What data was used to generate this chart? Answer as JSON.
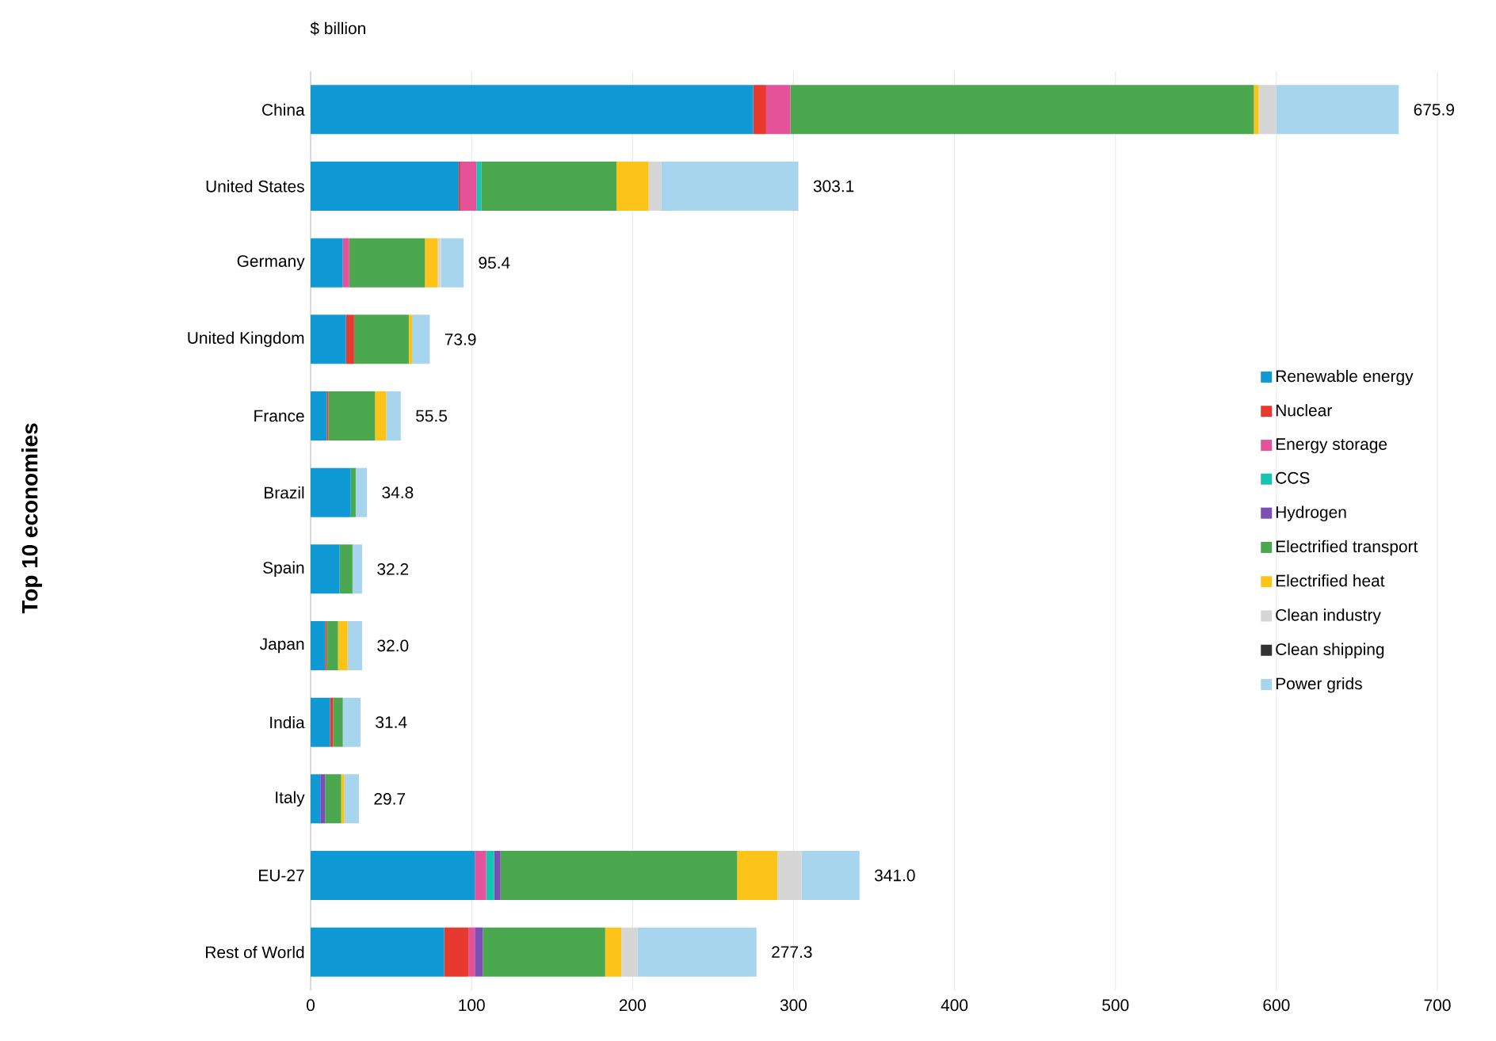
{
  "chart_data": {
    "type": "bar",
    "orientation": "horizontal",
    "stacked": true,
    "title": "$ billion",
    "annotations": [
      "Top 10 economies"
    ],
    "categories": [
      "China",
      "United States",
      "Germany",
      "United Kingdom",
      "France",
      "Brazil",
      "Spain",
      "Japan",
      "India",
      "Italy",
      "EU-27",
      "Rest of World"
    ],
    "series": [
      {
        "name": "Renewable energy",
        "color": "#0f9ad6",
        "values": [
          275,
          92,
          20,
          22,
          10,
          25,
          18,
          9,
          12,
          6,
          102,
          83
        ]
      },
      {
        "name": "Nuclear",
        "color": "#e8392f",
        "values": [
          8,
          1,
          0,
          5,
          1,
          0,
          0,
          1,
          2,
          0,
          0,
          15
        ]
      },
      {
        "name": "Energy storage",
        "color": "#e4539a",
        "values": [
          15,
          10,
          4,
          0,
          0,
          0,
          0,
          0,
          0,
          0,
          7,
          4
        ]
      },
      {
        "name": "CCS",
        "color": "#17c3b2",
        "values": [
          0,
          3,
          0,
          0,
          0,
          0,
          0,
          0,
          0,
          0,
          5,
          0
        ]
      },
      {
        "name": "Hydrogen",
        "color": "#7b4fb3",
        "values": [
          0,
          0,
          0,
          0,
          0,
          0,
          0,
          0,
          0,
          3,
          4,
          5
        ]
      },
      {
        "name": "Electrified transport",
        "color": "#4ba84f",
        "values": [
          288,
          84,
          47,
          34,
          29,
          3,
          8,
          7,
          6,
          10,
          147,
          76
        ]
      },
      {
        "name": "Electrified heat",
        "color": "#fcc419",
        "values": [
          3,
          20,
          8,
          2,
          7,
          0,
          0,
          6,
          0,
          2,
          25,
          10
        ]
      },
      {
        "name": "Clean industry",
        "color": "#d6d6d6",
        "values": [
          11,
          8,
          2,
          0,
          0,
          0,
          0,
          0,
          0,
          0,
          15,
          10
        ]
      },
      {
        "name": "Clean shipping",
        "color": "#333333",
        "values": [
          0,
          0,
          0,
          0,
          0,
          0,
          0,
          0,
          0,
          0,
          0,
          0
        ]
      },
      {
        "name": "Power grids",
        "color": "#a8d5ee",
        "values": [
          76,
          85,
          14,
          11,
          9,
          7,
          6,
          9,
          11,
          9,
          36,
          74
        ]
      }
    ],
    "totals": [
      "675.9",
      "303.1",
      "95.4",
      "73.9",
      "55.5",
      "34.8",
      "32.2",
      "32.0",
      "31.4",
      "29.7",
      "341.0",
      "277.3"
    ],
    "xlim": [
      0,
      700
    ],
    "xticks": [
      0,
      100,
      200,
      300,
      400,
      500,
      600,
      700
    ],
    "grid": "x",
    "legend": "right"
  }
}
